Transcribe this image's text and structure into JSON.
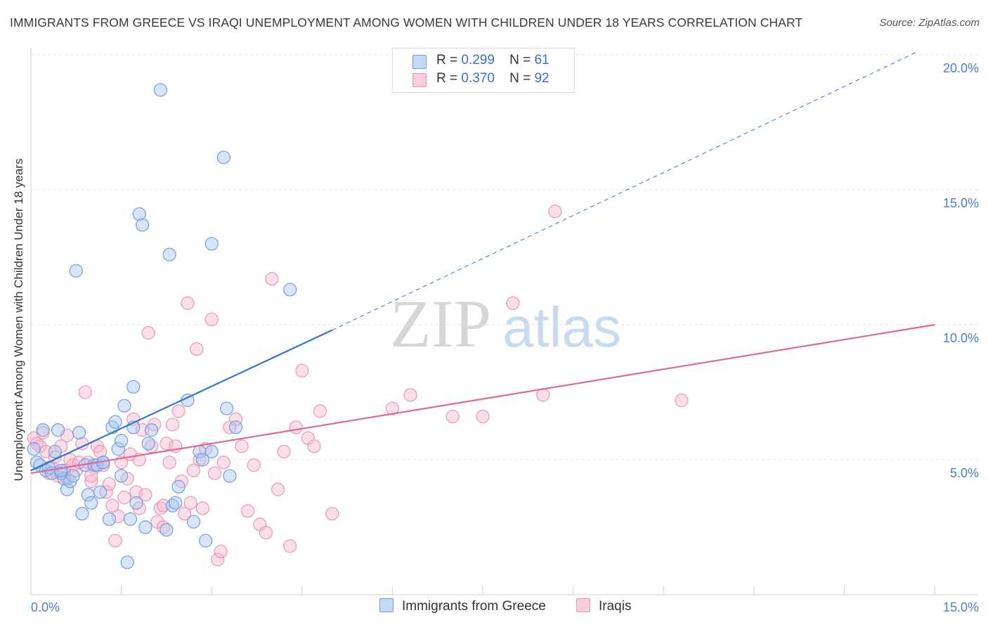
{
  "header": {
    "title": "IMMIGRANTS FROM GREECE VS IRAQI UNEMPLOYMENT AMONG WOMEN WITH CHILDREN UNDER 18 YEARS CORRELATION CHART",
    "source": "Source: ZipAtlas.com"
  },
  "legend": {
    "r_label": "R =",
    "n_label": "N =",
    "series": [
      {
        "name": "Immigrants from Greece",
        "r": "0.299",
        "n": "61"
      },
      {
        "name": "Iraqis",
        "r": "0.370",
        "n": "92"
      }
    ]
  },
  "watermark": {
    "zip": "ZIP",
    "atlas": "atlas"
  },
  "colors": {
    "blue_fill": "#a9c6f2",
    "blue_stroke": "#6f9ee3",
    "blue_line": "#2f74d0",
    "pink_fill": "#f6b8cb",
    "pink_stroke": "#ee95b2",
    "pink_line": "#e0679a",
    "axis_text": "#4a7fd0"
  },
  "chart_data": {
    "type": "scatter",
    "title": "IMMIGRANTS FROM GREECE VS IRAQI UNEMPLOYMENT AMONG WOMEN WITH CHILDREN UNDER 18 YEARS CORRELATION CHART",
    "xlabel": "",
    "ylabel": "Unemployment Among Women with Children Under 18 years",
    "xlim": [
      0,
      15
    ],
    "ylim": [
      0,
      20
    ],
    "x_tick_labels": [
      "0.0%",
      "15.0%"
    ],
    "y_tick_labels": [
      {
        "value": 5,
        "label": "5.0%"
      },
      {
        "value": 10,
        "label": "10.0%"
      },
      {
        "value": 15,
        "label": "15.0%"
      },
      {
        "value": 20,
        "label": "20.0%"
      }
    ],
    "series": [
      {
        "name": "Immigrants from Greece",
        "r": 0.299,
        "n": 61,
        "trend": {
          "x0": 0.0,
          "y0": 4.6,
          "x1": 5.0,
          "y1": 9.8,
          "dashed_to_x": 14.7,
          "dashed_to_y": 20.1
        },
        "points": [
          [
            0.05,
            5.4
          ],
          [
            0.1,
            4.9
          ],
          [
            0.15,
            4.8
          ],
          [
            0.2,
            6.1
          ],
          [
            0.25,
            4.6
          ],
          [
            0.3,
            4.7
          ],
          [
            0.35,
            4.5
          ],
          [
            0.4,
            5.3
          ],
          [
            0.45,
            6.1
          ],
          [
            0.5,
            4.5
          ],
          [
            0.55,
            4.3
          ],
          [
            0.6,
            3.9
          ],
          [
            0.65,
            4.2
          ],
          [
            0.7,
            4.4
          ],
          [
            0.75,
            12.0
          ],
          [
            0.8,
            6.0
          ],
          [
            0.85,
            3.0
          ],
          [
            0.9,
            4.8
          ],
          [
            0.95,
            3.7
          ],
          [
            1.0,
            3.4
          ],
          [
            1.05,
            4.8
          ],
          [
            1.1,
            4.8
          ],
          [
            1.15,
            3.8
          ],
          [
            1.2,
            4.9
          ],
          [
            1.3,
            2.8
          ],
          [
            1.35,
            6.2
          ],
          [
            1.4,
            6.4
          ],
          [
            1.45,
            5.4
          ],
          [
            1.5,
            5.7
          ],
          [
            1.5,
            4.4
          ],
          [
            1.55,
            7.0
          ],
          [
            1.6,
            1.2
          ],
          [
            1.65,
            2.8
          ],
          [
            1.7,
            7.7
          ],
          [
            1.75,
            3.4
          ],
          [
            1.8,
            14.1
          ],
          [
            1.85,
            13.7
          ],
          [
            1.9,
            2.5
          ],
          [
            1.95,
            5.6
          ],
          [
            2.0,
            6.1
          ],
          [
            1.7,
            6.2
          ],
          [
            2.15,
            18.7
          ],
          [
            2.25,
            2.4
          ],
          [
            2.3,
            12.6
          ],
          [
            2.35,
            3.3
          ],
          [
            2.4,
            3.4
          ],
          [
            2.45,
            4.0
          ],
          [
            2.6,
            7.2
          ],
          [
            2.7,
            2.7
          ],
          [
            2.8,
            5.3
          ],
          [
            2.85,
            5.0
          ],
          [
            2.9,
            2.0
          ],
          [
            3.0,
            5.3
          ],
          [
            3.0,
            13.0
          ],
          [
            3.2,
            16.2
          ],
          [
            3.25,
            6.9
          ],
          [
            3.3,
            4.4
          ],
          [
            3.4,
            6.2
          ],
          [
            4.3,
            11.3
          ],
          [
            0.5,
            4.6
          ],
          [
            1.2,
            4.9
          ]
        ]
      },
      {
        "name": "Iraqis",
        "r": 0.37,
        "n": 92,
        "trend": {
          "x0": 0.0,
          "y0": 4.5,
          "x1": 15.0,
          "y1": 10.0
        },
        "points": [
          [
            0.05,
            5.8
          ],
          [
            0.1,
            5.6
          ],
          [
            0.15,
            5.5
          ],
          [
            0.2,
            6.0
          ],
          [
            0.25,
            5.3
          ],
          [
            0.3,
            4.5
          ],
          [
            0.35,
            4.7
          ],
          [
            0.4,
            5.1
          ],
          [
            0.45,
            4.4
          ],
          [
            0.5,
            5.5
          ],
          [
            0.55,
            4.6
          ],
          [
            0.6,
            4.3
          ],
          [
            0.65,
            5.0
          ],
          [
            0.7,
            4.8
          ],
          [
            0.75,
            4.6
          ],
          [
            0.8,
            4.9
          ],
          [
            0.85,
            5.6
          ],
          [
            0.9,
            7.5
          ],
          [
            0.95,
            4.9
          ],
          [
            1.0,
            4.2
          ],
          [
            1.05,
            4.7
          ],
          [
            1.1,
            5.5
          ],
          [
            1.15,
            5.3
          ],
          [
            1.2,
            4.8
          ],
          [
            1.25,
            3.8
          ],
          [
            1.3,
            4.1
          ],
          [
            1.35,
            3.3
          ],
          [
            1.4,
            2.0
          ],
          [
            1.45,
            2.9
          ],
          [
            1.5,
            4.9
          ],
          [
            1.55,
            3.6
          ],
          [
            1.6,
            4.3
          ],
          [
            1.65,
            5.2
          ],
          [
            1.7,
            6.5
          ],
          [
            1.75,
            3.8
          ],
          [
            1.8,
            5.0
          ],
          [
            1.85,
            6.1
          ],
          [
            1.9,
            3.7
          ],
          [
            1.95,
            9.7
          ],
          [
            2.0,
            5.5
          ],
          [
            2.05,
            6.3
          ],
          [
            2.1,
            2.7
          ],
          [
            2.15,
            3.2
          ],
          [
            2.2,
            3.3
          ],
          [
            2.25,
            5.6
          ],
          [
            2.3,
            4.9
          ],
          [
            2.35,
            6.3
          ],
          [
            2.4,
            5.5
          ],
          [
            2.45,
            6.8
          ],
          [
            2.5,
            4.2
          ],
          [
            2.55,
            3.0
          ],
          [
            2.6,
            10.8
          ],
          [
            2.65,
            3.4
          ],
          [
            2.7,
            4.6
          ],
          [
            2.75,
            9.1
          ],
          [
            2.8,
            5.0
          ],
          [
            2.85,
            3.2
          ],
          [
            2.9,
            5.4
          ],
          [
            3.0,
            10.2
          ],
          [
            3.05,
            4.5
          ],
          [
            3.1,
            1.3
          ],
          [
            3.15,
            1.6
          ],
          [
            3.2,
            4.9
          ],
          [
            3.3,
            6.2
          ],
          [
            3.4,
            6.5
          ],
          [
            3.5,
            5.5
          ],
          [
            3.6,
            3.1
          ],
          [
            3.7,
            4.8
          ],
          [
            3.8,
            2.6
          ],
          [
            3.9,
            2.3
          ],
          [
            4.0,
            11.7
          ],
          [
            4.1,
            3.9
          ],
          [
            4.2,
            5.3
          ],
          [
            4.3,
            1.8
          ],
          [
            4.4,
            6.2
          ],
          [
            4.5,
            8.3
          ],
          [
            4.6,
            5.8
          ],
          [
            4.7,
            5.5
          ],
          [
            4.8,
            6.8
          ],
          [
            5.0,
            3.0
          ],
          [
            6.0,
            6.9
          ],
          [
            6.3,
            7.4
          ],
          [
            7.0,
            6.6
          ],
          [
            7.5,
            6.6
          ],
          [
            8.0,
            10.8
          ],
          [
            8.5,
            7.4
          ],
          [
            8.7,
            14.2
          ],
          [
            10.8,
            7.2
          ],
          [
            0.6,
            5.9
          ],
          [
            1.0,
            4.4
          ],
          [
            1.8,
            3.2
          ],
          [
            2.2,
            2.5
          ]
        ]
      }
    ]
  }
}
